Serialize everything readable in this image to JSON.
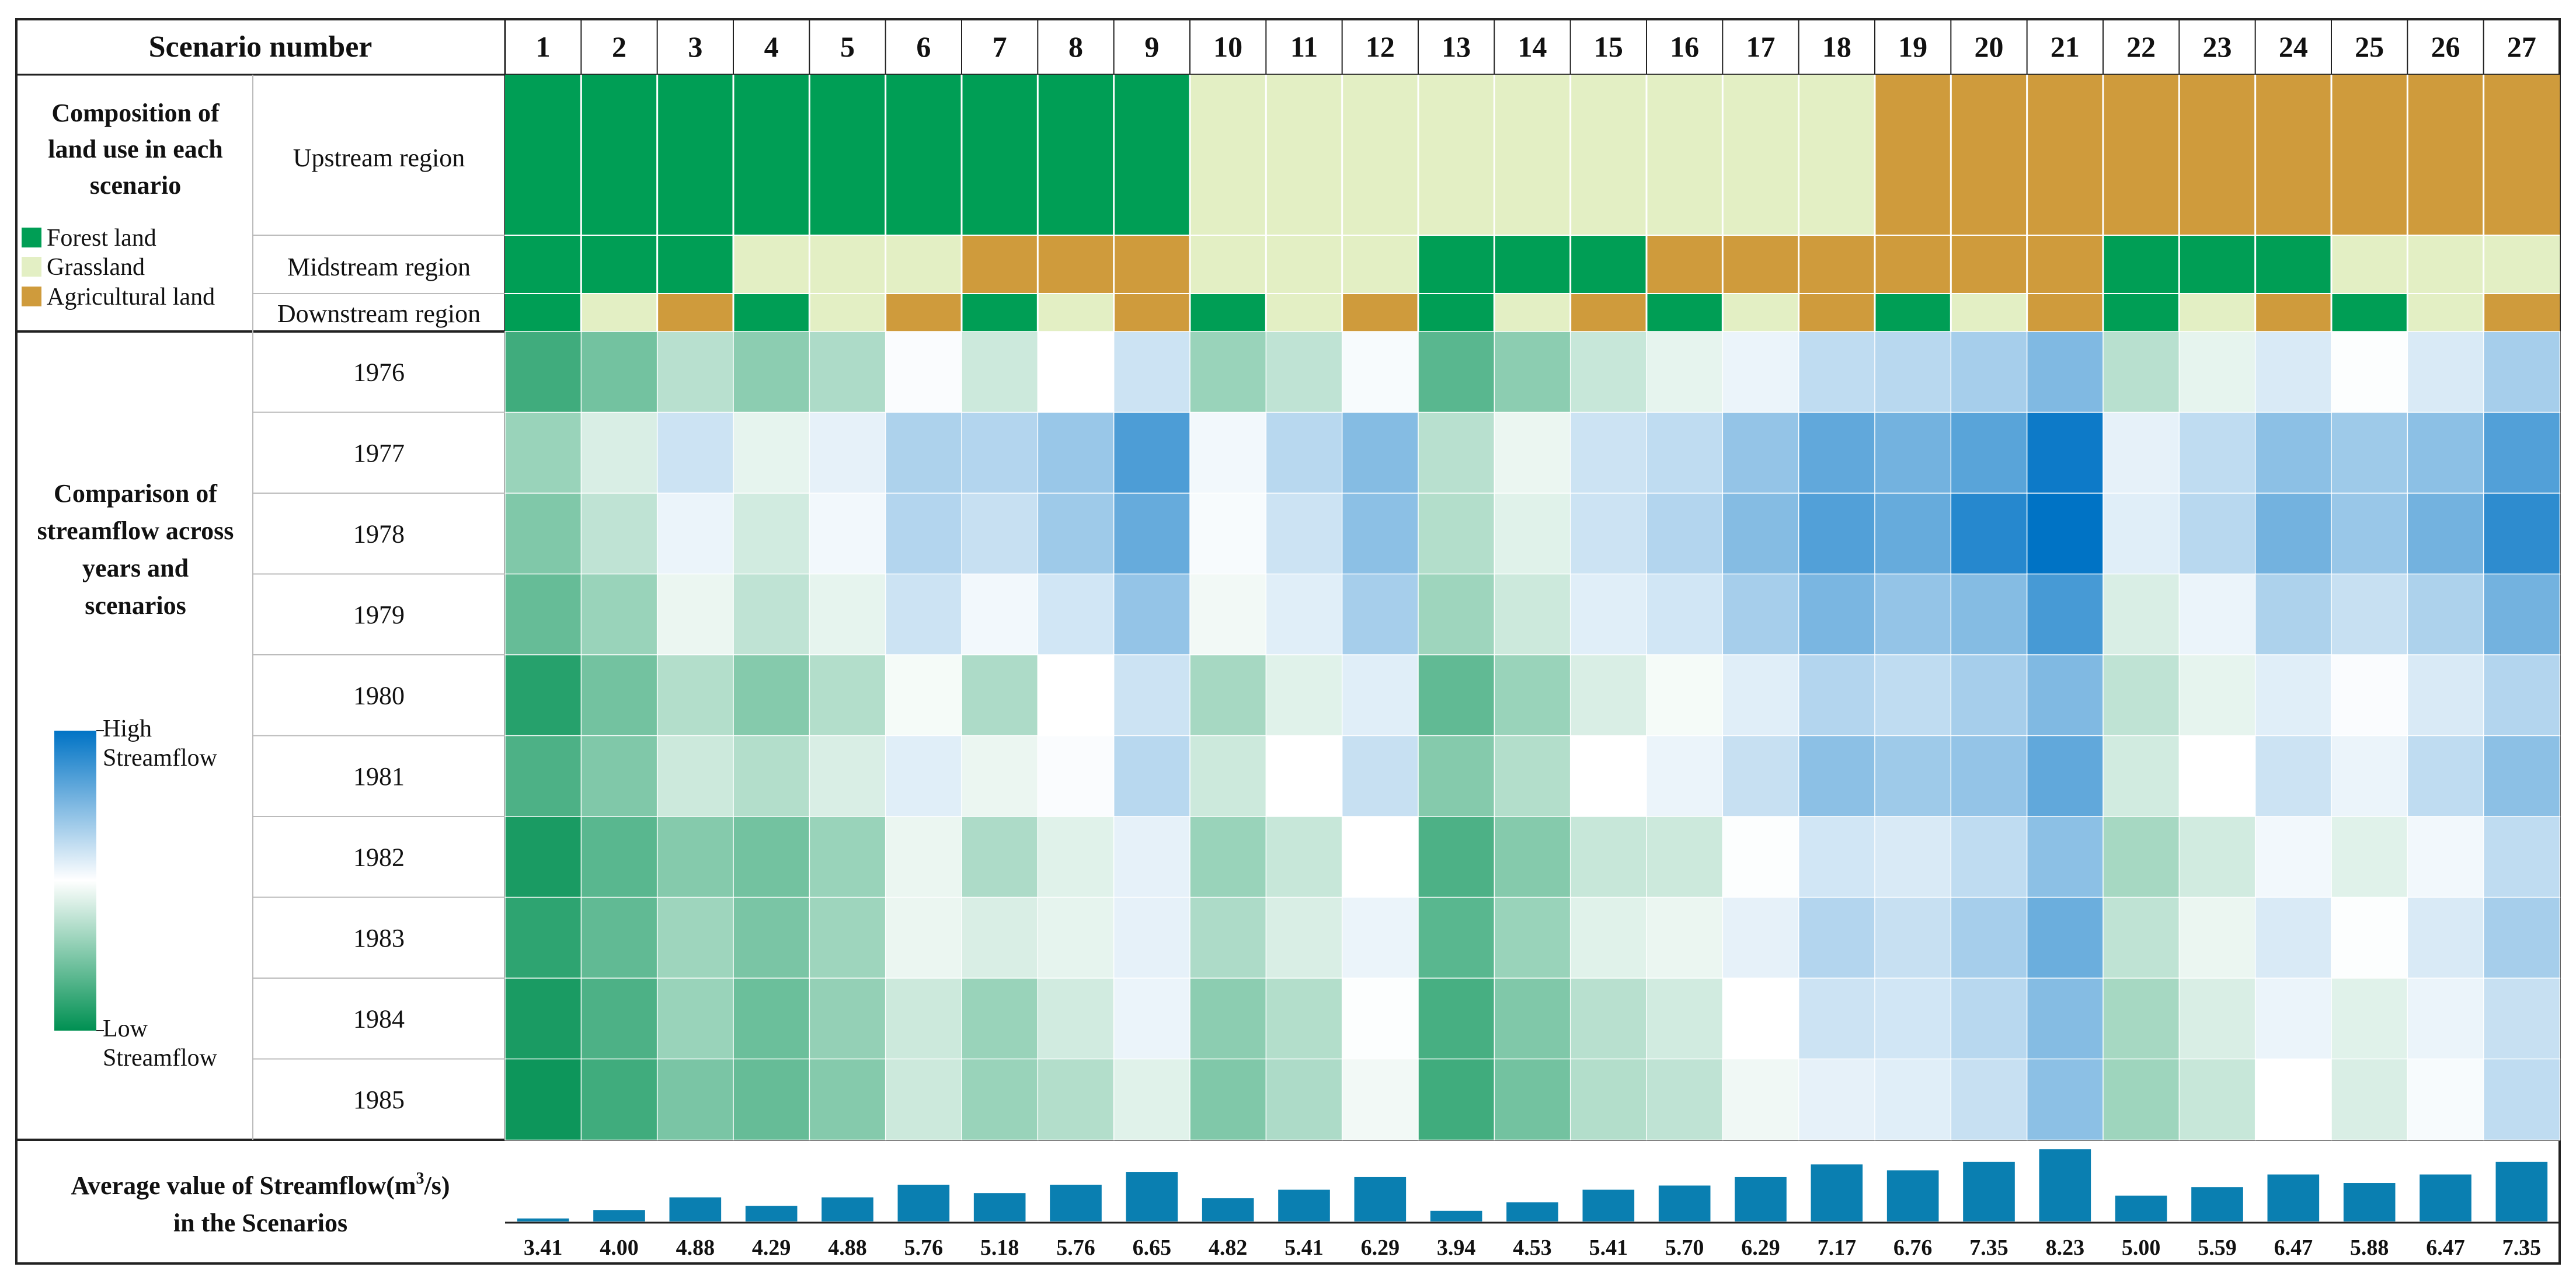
{
  "header": {
    "scenario_label": "Scenario number"
  },
  "land_use": {
    "title_lines": [
      "Composition of",
      "land use in each",
      "scenario"
    ],
    "regions": [
      "Upstream region",
      "Midstream region",
      "Downstream region"
    ],
    "legend": [
      {
        "label": "Forest land",
        "color": "#009e55"
      },
      {
        "label": "Grassland",
        "color": "#e3efc4"
      },
      {
        "label": "Agricultural land",
        "color": "#cf9b3c"
      }
    ],
    "composition": [
      [
        "F",
        "F",
        "F"
      ],
      [
        "F",
        "F",
        "G"
      ],
      [
        "F",
        "F",
        "A"
      ],
      [
        "F",
        "G",
        "F"
      ],
      [
        "F",
        "G",
        "G"
      ],
      [
        "F",
        "G",
        "A"
      ],
      [
        "F",
        "A",
        "F"
      ],
      [
        "F",
        "A",
        "G"
      ],
      [
        "F",
        "A",
        "A"
      ],
      [
        "G",
        "G",
        "F"
      ],
      [
        "G",
        "G",
        "G"
      ],
      [
        "G",
        "G",
        "A"
      ],
      [
        "G",
        "F",
        "F"
      ],
      [
        "G",
        "F",
        "G"
      ],
      [
        "G",
        "F",
        "A"
      ],
      [
        "G",
        "A",
        "F"
      ],
      [
        "G",
        "A",
        "G"
      ],
      [
        "G",
        "A",
        "A"
      ],
      [
        "A",
        "A",
        "F"
      ],
      [
        "A",
        "A",
        "G"
      ],
      [
        "A",
        "A",
        "A"
      ],
      [
        "A",
        "F",
        "F"
      ],
      [
        "A",
        "F",
        "G"
      ],
      [
        "A",
        "F",
        "A"
      ],
      [
        "A",
        "G",
        "F"
      ],
      [
        "A",
        "G",
        "G"
      ],
      [
        "A",
        "G",
        "A"
      ]
    ]
  },
  "heatmap": {
    "title_lines": [
      "Comparison of",
      "streamflow across",
      "years and",
      "scenarios"
    ],
    "legend": {
      "high_lines": [
        "High",
        "Streamflow"
      ],
      "low_lines": [
        "Low",
        "Streamflow"
      ],
      "high_color": "#0073c5",
      "mid_color": "#ffffff",
      "low_color": "#009052"
    }
  },
  "average": {
    "title_line1": "Average value of Streamflow(m",
    "title_sup": "3",
    "title_line1_end": "/s)",
    "title_line2": "in the Scenarios",
    "bar_color": "#0a7fb1"
  },
  "chart_data": {
    "type": "heatmap",
    "title": "Comparison of streamflow across years and scenarios",
    "scenarios": [
      "1",
      "2",
      "3",
      "4",
      "5",
      "6",
      "7",
      "8",
      "9",
      "10",
      "11",
      "12",
      "13",
      "14",
      "15",
      "16",
      "17",
      "18",
      "19",
      "20",
      "21",
      "22",
      "23",
      "24",
      "25",
      "26",
      "27"
    ],
    "years": [
      "1976",
      "1977",
      "1978",
      "1979",
      "1980",
      "1981",
      "1982",
      "1983",
      "1984",
      "1985"
    ],
    "z_range": [
      -1,
      1
    ],
    "streamflow_index": [
      [
        -0.75,
        -0.55,
        -0.28,
        -0.45,
        -0.32,
        0.02,
        -0.2,
        0.0,
        0.2,
        -0.4,
        -0.25,
        0.03,
        -0.65,
        -0.45,
        -0.22,
        -0.1,
        0.08,
        0.25,
        0.28,
        0.35,
        0.5,
        -0.28,
        -0.1,
        0.15,
        0.01,
        0.15,
        0.35
      ],
      [
        -0.4,
        -0.15,
        0.2,
        -0.1,
        0.1,
        0.32,
        0.3,
        0.4,
        0.7,
        0.05,
        0.28,
        0.48,
        -0.28,
        -0.08,
        0.2,
        0.25,
        0.42,
        0.62,
        0.55,
        0.65,
        0.95,
        0.1,
        0.25,
        0.45,
        0.38,
        0.45,
        0.68
      ],
      [
        -0.5,
        -0.25,
        0.08,
        -0.18,
        0.05,
        0.3,
        0.22,
        0.38,
        0.6,
        0.03,
        0.2,
        0.45,
        -0.3,
        -0.12,
        0.2,
        0.3,
        0.48,
        0.68,
        0.6,
        0.85,
        1.0,
        0.12,
        0.28,
        0.55,
        0.4,
        0.55,
        0.82
      ],
      [
        -0.6,
        -0.4,
        -0.08,
        -0.25,
        -0.1,
        0.2,
        0.05,
        0.18,
        0.42,
        -0.05,
        0.12,
        0.35,
        -0.38,
        -0.2,
        0.12,
        0.18,
        0.35,
        0.52,
        0.42,
        0.48,
        0.72,
        -0.15,
        0.08,
        0.32,
        0.22,
        0.32,
        0.55
      ],
      [
        -0.85,
        -0.55,
        -0.3,
        -0.48,
        -0.3,
        -0.04,
        -0.32,
        0.0,
        0.2,
        -0.35,
        -0.12,
        0.12,
        -0.62,
        -0.4,
        -0.15,
        -0.04,
        0.12,
        0.3,
        0.25,
        0.35,
        0.5,
        -0.25,
        -0.1,
        0.12,
        0.02,
        0.15,
        0.3
      ],
      [
        -0.7,
        -0.5,
        -0.2,
        -0.3,
        -0.15,
        0.12,
        -0.08,
        0.02,
        0.28,
        -0.2,
        0.0,
        0.22,
        -0.48,
        -0.3,
        0.0,
        0.08,
        0.22,
        0.45,
        0.38,
        0.42,
        0.62,
        -0.18,
        0.0,
        0.2,
        0.08,
        0.25,
        0.45
      ],
      [
        -0.9,
        -0.65,
        -0.48,
        -0.55,
        -0.4,
        -0.08,
        -0.32,
        -0.12,
        0.1,
        -0.4,
        -0.22,
        0.0,
        -0.7,
        -0.48,
        -0.22,
        -0.2,
        0.01,
        0.18,
        0.15,
        0.25,
        0.45,
        -0.35,
        -0.18,
        0.05,
        -0.12,
        0.05,
        0.25
      ],
      [
        -0.82,
        -0.62,
        -0.38,
        -0.52,
        -0.38,
        -0.08,
        -0.15,
        -0.1,
        0.1,
        -0.32,
        -0.15,
        0.08,
        -0.65,
        -0.4,
        -0.12,
        -0.08,
        0.1,
        0.3,
        0.22,
        0.35,
        0.58,
        -0.25,
        -0.08,
        0.15,
        0.01,
        0.15,
        0.35
      ],
      [
        -0.9,
        -0.7,
        -0.4,
        -0.58,
        -0.42,
        -0.2,
        -0.4,
        -0.18,
        0.08,
        -0.45,
        -0.3,
        0.01,
        -0.72,
        -0.5,
        -0.28,
        -0.18,
        0.0,
        0.2,
        0.18,
        0.28,
        0.48,
        -0.35,
        -0.15,
        0.08,
        -0.12,
        0.08,
        0.22
      ],
      [
        -0.95,
        -0.75,
        -0.52,
        -0.6,
        -0.48,
        -0.2,
        -0.4,
        -0.3,
        -0.12,
        -0.5,
        -0.32,
        -0.05,
        -0.75,
        -0.55,
        -0.3,
        -0.25,
        -0.06,
        0.1,
        0.12,
        0.22,
        0.45,
        -0.38,
        -0.22,
        0.0,
        -0.15,
        0.03,
        0.25
      ]
    ],
    "average_streamflow": {
      "type": "bar",
      "ylabel": "Average value of Streamflow (m3/s)",
      "values": [
        3.41,
        4.0,
        4.88,
        4.29,
        4.88,
        5.76,
        5.18,
        5.76,
        6.65,
        4.82,
        5.41,
        6.29,
        3.94,
        4.53,
        5.41,
        5.7,
        6.29,
        7.17,
        6.76,
        7.35,
        8.23,
        5.0,
        5.59,
        6.47,
        5.88,
        6.47,
        7.35
      ],
      "labels": [
        "3.41",
        "4.00",
        "4.88",
        "4.29",
        "4.88",
        "5.76",
        "5.18",
        "5.76",
        "6.65",
        "4.82",
        "5.41",
        "6.29",
        "3.94",
        "4.53",
        "5.41",
        "5.70",
        "6.29",
        "7.17",
        "6.76",
        "7.35",
        "8.23",
        "5.00",
        "5.59",
        "6.47",
        "5.88",
        "6.47",
        "7.35"
      ],
      "ylim": [
        3.2,
        8.4
      ]
    }
  }
}
